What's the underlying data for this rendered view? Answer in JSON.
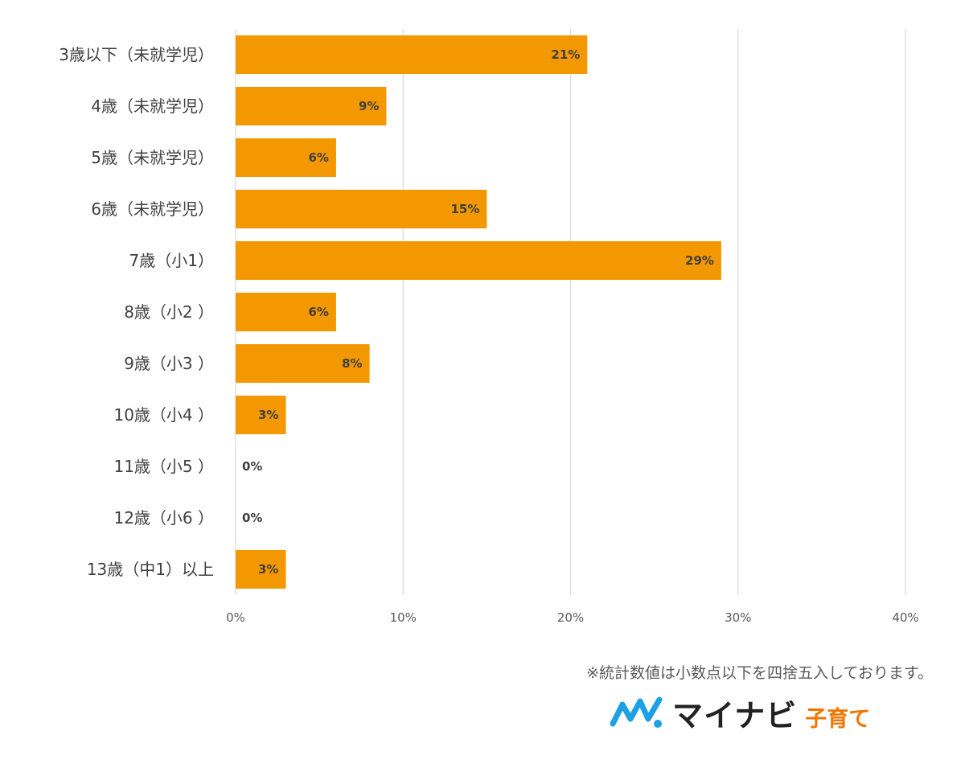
{
  "colors": {
    "bar": "#F39800",
    "grid": "#D9D9D9",
    "brand_blue": "#1EA0E6",
    "brand_orange": "#EE7700"
  },
  "chart_data": {
    "type": "bar",
    "orientation": "horizontal",
    "categories": [
      "3歳以下（未就学児）",
      "4歳（未就学児）",
      "5歳（未就学児）",
      "6歳（未就学児）",
      "7歳（小1）",
      "8歳（小2 ）",
      "9歳（小3 ）",
      "10歳（小4 ）",
      "11歳（小5 ）",
      "12歳（小6 ）",
      "13歳（中1）以上"
    ],
    "values": [
      21,
      9,
      6,
      15,
      29,
      6,
      8,
      3,
      0,
      0,
      3
    ],
    "value_labels": [
      "21%",
      "9%",
      "6%",
      "15%",
      "29%",
      "6%",
      "8%",
      "3%",
      "0%",
      "0%",
      "3%"
    ],
    "xlim": [
      0,
      40
    ],
    "x_ticks": [
      0,
      10,
      20,
      30,
      40
    ],
    "x_tick_labels": [
      "0%",
      "10%",
      "20%",
      "30%",
      "40%"
    ],
    "title": "",
    "xlabel": "",
    "ylabel": "",
    "grid": true
  },
  "footnote": "※統計数値は小数点以下を四捨五入しております。",
  "brand": {
    "name": "マイナビ",
    "sub": "子育て",
    "mark_icon": "mynavi-logo-icon"
  }
}
